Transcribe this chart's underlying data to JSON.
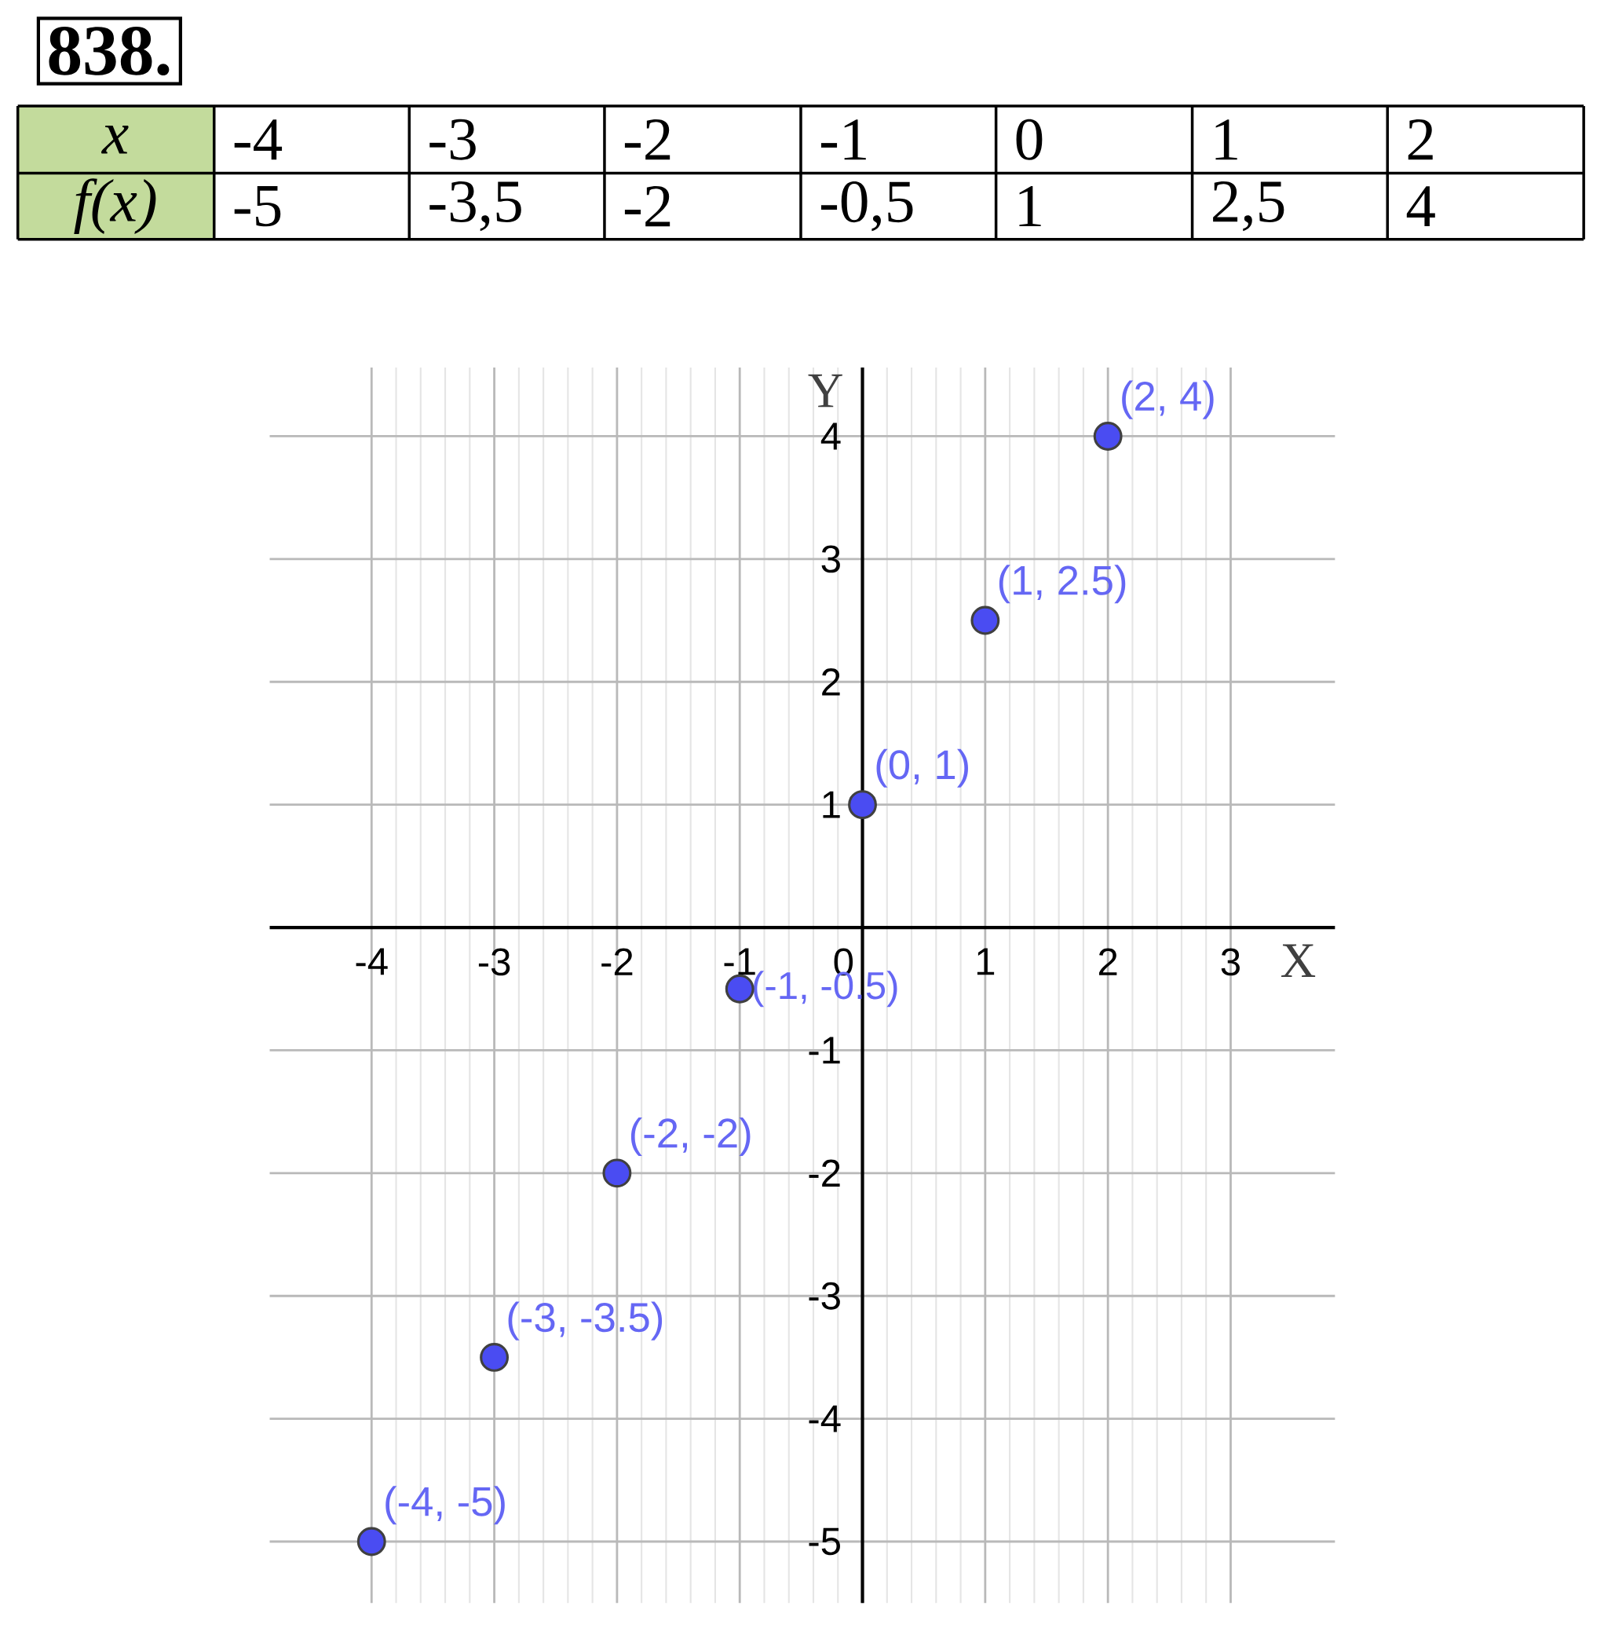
{
  "chart_data": {
    "type": "scatter",
    "title": "838.",
    "xlabel": "X",
    "ylabel": "Y",
    "x": [
      -4,
      -3,
      -2,
      -1,
      0,
      1,
      2
    ],
    "values": [
      -5,
      -3.5,
      -2,
      -0.5,
      1,
      2.5,
      4
    ],
    "value_labels": [
      "(-4, -5)",
      "(-3, -3.5)",
      "(-2, -2)",
      "(-1, -0.5)",
      "(0, 1)",
      "(1, 2.5)",
      "(2, 4)"
    ],
    "annotations": [
      "x",
      "-4",
      "-3",
      "-2",
      "-1",
      "0",
      "1",
      "2",
      "f(x)",
      "-5",
      "-3,5",
      "-2",
      "-0,5",
      "1",
      "2,5",
      "4"
    ],
    "color": "#4a4cf2",
    "marker": "circle",
    "grid": true,
    "xlim": [
      -4.83,
      3.85
    ],
    "ylim": [
      -5.5,
      4.56
    ],
    "xticks": [
      -4,
      -3,
      -2,
      -1,
      0,
      1,
      2,
      3
    ],
    "yticks": [
      -5,
      -4,
      -3,
      -2,
      -1,
      1,
      2,
      3,
      4
    ]
  }
}
